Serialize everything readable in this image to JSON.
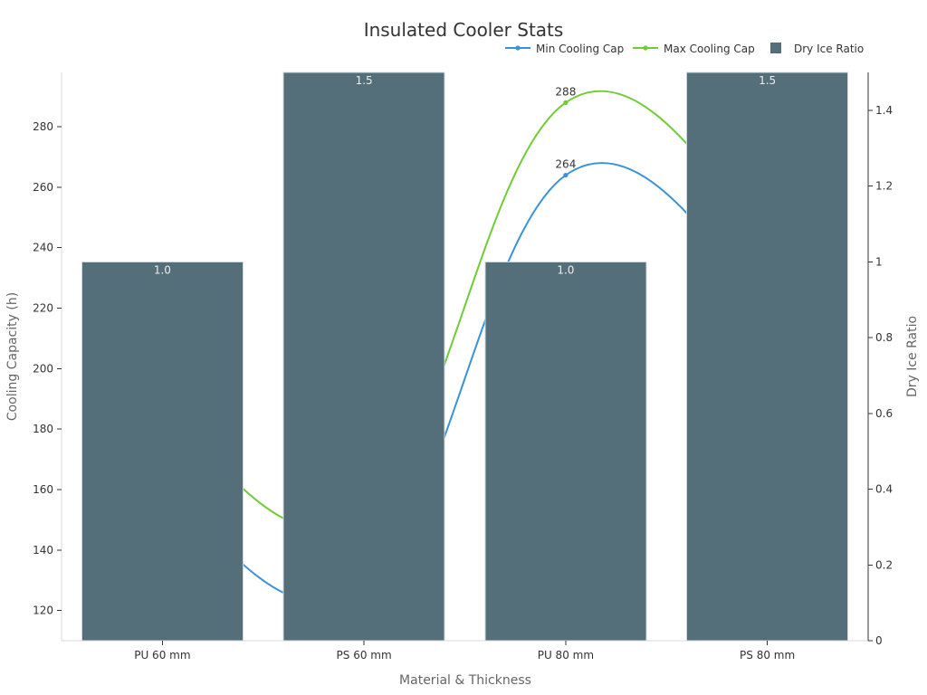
{
  "chart_data": {
    "type": "bar",
    "title": "Insulated Cooler Stats",
    "categories": [
      "PU 60 mm",
      "PS 60 mm",
      "PU 80 mm",
      "PS 80 mm"
    ],
    "xlabel": "Material & Thickness",
    "ylabel": "Cooling Capacity (h)",
    "y2label": "Dry Ice Ratio",
    "ylim": [
      110,
      298
    ],
    "y2lim": [
      0,
      1.5
    ],
    "yticks": [
      120,
      140,
      160,
      180,
      200,
      220,
      240,
      260,
      280
    ],
    "y2ticks": [
      0,
      0.2,
      0.4,
      0.6,
      0.8,
      1,
      1.2,
      1.4
    ],
    "y2tick_labels": [
      "0",
      "0.2",
      "0.4",
      "0.6",
      "0.8",
      "1",
      "1.2",
      "1.4"
    ],
    "legend_position": "top-right",
    "grid": false,
    "bars": {
      "name": "Dry Ice Ratio",
      "axis": "right",
      "color": "#546e7a",
      "values": [
        1.0,
        1.5,
        1.0,
        1.5
      ],
      "labels": [
        "1.0",
        "1.5",
        "1.0",
        "1.5"
      ]
    },
    "series": [
      {
        "name": "Min Cooling Cap",
        "type": "line",
        "axis": "left",
        "color": "#3a93d8",
        "values": [
          160,
          128,
          264,
          222
        ],
        "labels": [
          "",
          "",
          "264",
          ""
        ]
      },
      {
        "name": "Max Cooling Cap",
        "type": "line",
        "axis": "left",
        "color": "#6fcc35",
        "values": [
          186,
          152,
          288,
          244
        ],
        "labels": [
          "",
          "",
          "288",
          ""
        ]
      }
    ]
  }
}
